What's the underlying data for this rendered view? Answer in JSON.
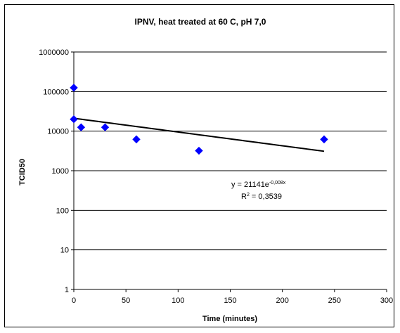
{
  "chart_data": {
    "type": "scatter",
    "title": "IPNV, heat treated at 60 C, pH 7,0",
    "xlabel": "Time (minutes)",
    "ylabel": "TCID50",
    "xlim": [
      0,
      300
    ],
    "ylim": [
      1,
      1000000
    ],
    "yscale": "log",
    "grid": "horizontal",
    "x_ticks": [
      "0",
      "50",
      "100",
      "150",
      "200",
      "250",
      "300"
    ],
    "y_ticks": [
      "1",
      "10",
      "100",
      "1000",
      "10000",
      "100000",
      "1000000"
    ],
    "series": [
      {
        "points": [
          {
            "x": 0,
            "y": 125000
          },
          {
            "x": 0,
            "y": 20000
          },
          {
            "x": 7,
            "y": 12500
          },
          {
            "x": 30,
            "y": 12500
          },
          {
            "x": 60,
            "y": 6200
          },
          {
            "x": 120,
            "y": 3200
          },
          {
            "x": 240,
            "y": 6200
          }
        ],
        "color": "#0000FF",
        "marker": "diamond"
      }
    ],
    "trendline": {
      "type": "exponential",
      "a": 21141,
      "b": -0.008,
      "x_range": [
        0,
        240
      ],
      "color": "#000000"
    },
    "annotations": {
      "equation_base": "y = 21141e",
      "equation_exponent": "-0,008x",
      "r2_prefix": "R",
      "r2_exponent": "2",
      "r2_value": " = 0,3539"
    }
  }
}
